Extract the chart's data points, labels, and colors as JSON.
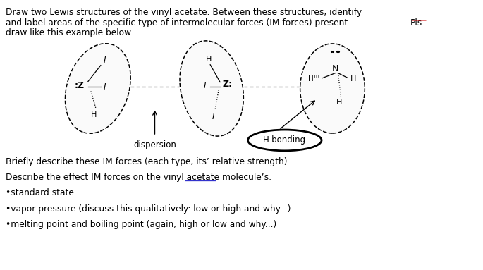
{
  "bg_color": "#ffffff",
  "text_color": "#000000",
  "title_line1": "Draw two Lewis structures of the vinyl acetate. Between these structures, identify",
  "title_line2a": "and label areas of the specific type of intermolecular forces (IM forces) present. ",
  "title_line2b": "Pls",
  "title_line3": "draw like this example below",
  "bottom_lines": [
    "Briefly describe these IM forces (each type, its’ relative strength)",
    "Describe the effect IM forces on the vinyl acetate molecule’s:",
    "•standard state",
    "•vapor pressure (discuss this qualitatively: low or high and why...)",
    "•melting point and boiling point (again, high or low and why...)"
  ],
  "dispersion_label": "dispersion",
  "hbonding_label": "H-bonding",
  "fig_width": 6.85,
  "fig_height": 3.83,
  "dpi": 100
}
